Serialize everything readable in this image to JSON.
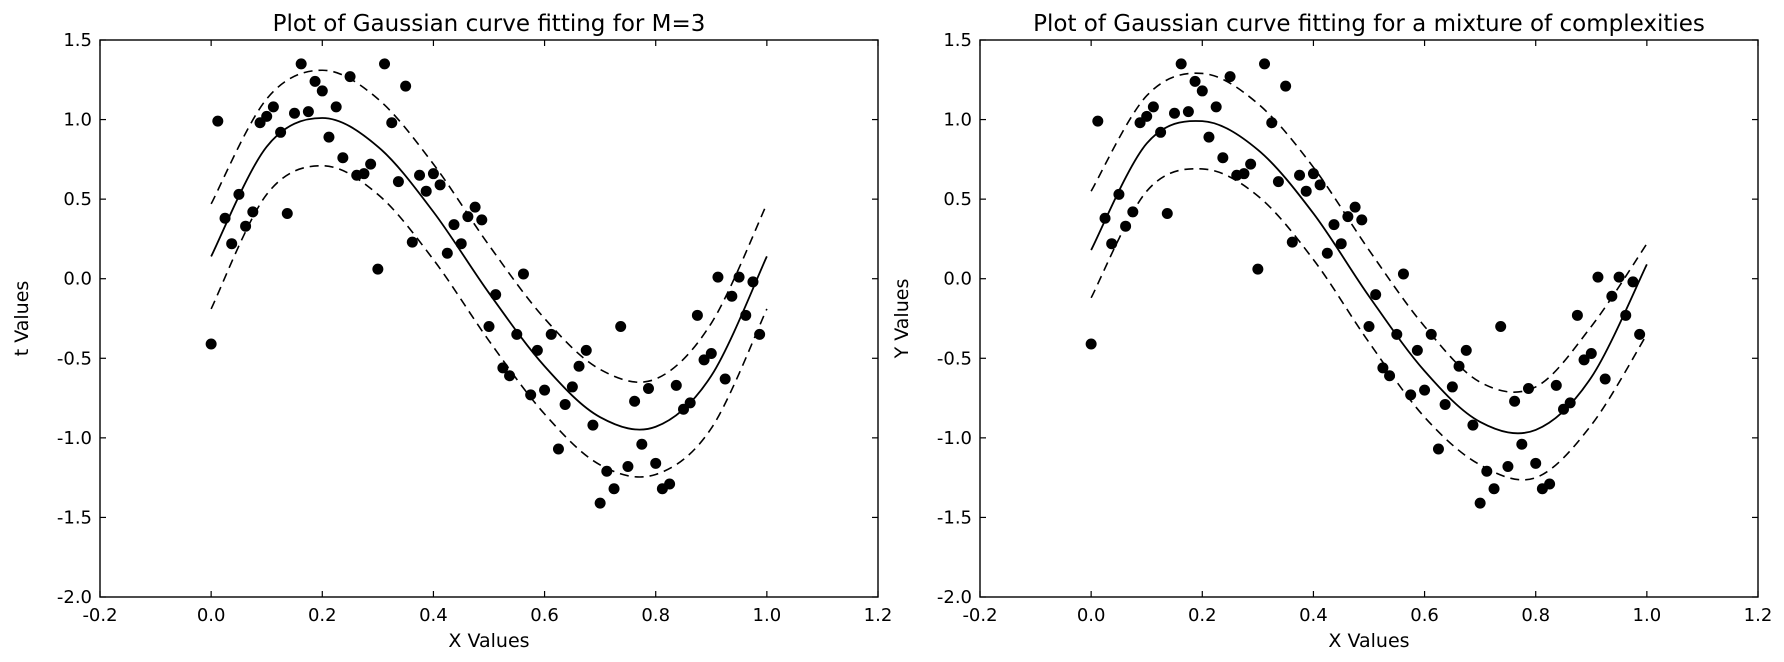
{
  "chart_data": [
    {
      "type": "scatter",
      "title": "Plot of Gaussian curve fitting for M=3",
      "xlabel": "X Values",
      "ylabel": "t Values",
      "xlim": [
        -0.2,
        1.2
      ],
      "ylim": [
        -2.0,
        1.5
      ],
      "xticks": [
        "-0.2",
        "0.0",
        "0.2",
        "0.4",
        "0.6",
        "0.8",
        "1.0",
        "1.2"
      ],
      "yticks": [
        "-2.0",
        "-1.5",
        "-1.0",
        "-0.5",
        "0.0",
        "0.5",
        "1.0",
        "1.5"
      ],
      "grid": false,
      "points": [
        [
          0.0,
          -0.41
        ],
        [
          0.012,
          0.99
        ],
        [
          0.025,
          0.38
        ],
        [
          0.037,
          0.22
        ],
        [
          0.05,
          0.53
        ],
        [
          0.062,
          0.33
        ],
        [
          0.075,
          0.42
        ],
        [
          0.088,
          0.98
        ],
        [
          0.1,
          1.02
        ],
        [
          0.112,
          1.08
        ],
        [
          0.125,
          0.92
        ],
        [
          0.137,
          0.41
        ],
        [
          0.15,
          1.04
        ],
        [
          0.162,
          1.35
        ],
        [
          0.175,
          1.05
        ],
        [
          0.187,
          1.24
        ],
        [
          0.2,
          1.18
        ],
        [
          0.212,
          0.89
        ],
        [
          0.225,
          1.08
        ],
        [
          0.237,
          0.76
        ],
        [
          0.25,
          1.27
        ],
        [
          0.262,
          0.65
        ],
        [
          0.275,
          0.66
        ],
        [
          0.287,
          0.72
        ],
        [
          0.3,
          0.06
        ],
        [
          0.312,
          1.35
        ],
        [
          0.325,
          0.98
        ],
        [
          0.337,
          0.61
        ],
        [
          0.35,
          1.21
        ],
        [
          0.362,
          0.23
        ],
        [
          0.375,
          0.65
        ],
        [
          0.387,
          0.55
        ],
        [
          0.4,
          0.66
        ],
        [
          0.412,
          0.59
        ],
        [
          0.425,
          0.16
        ],
        [
          0.437,
          0.34
        ],
        [
          0.45,
          0.22
        ],
        [
          0.462,
          0.39
        ],
        [
          0.475,
          0.45
        ],
        [
          0.487,
          0.37
        ],
        [
          0.5,
          -0.3
        ],
        [
          0.512,
          -0.1
        ],
        [
          0.525,
          -0.56
        ],
        [
          0.537,
          -0.61
        ],
        [
          0.55,
          -0.35
        ],
        [
          0.562,
          0.03
        ],
        [
          0.575,
          -0.73
        ],
        [
          0.587,
          -0.45
        ],
        [
          0.6,
          -0.7
        ],
        [
          0.612,
          -0.35
        ],
        [
          0.625,
          -1.07
        ],
        [
          0.637,
          -0.79
        ],
        [
          0.65,
          -0.68
        ],
        [
          0.662,
          -0.55
        ],
        [
          0.675,
          -0.45
        ],
        [
          0.687,
          -0.92
        ],
        [
          0.7,
          -1.41
        ],
        [
          0.712,
          -1.21
        ],
        [
          0.725,
          -1.32
        ],
        [
          0.737,
          -0.3
        ],
        [
          0.75,
          -1.18
        ],
        [
          0.762,
          -0.77
        ],
        [
          0.775,
          -1.04
        ],
        [
          0.787,
          -0.69
        ],
        [
          0.8,
          -1.16
        ],
        [
          0.812,
          -1.32
        ],
        [
          0.825,
          -1.29
        ],
        [
          0.837,
          -0.67
        ],
        [
          0.85,
          -0.82
        ],
        [
          0.862,
          -0.78
        ],
        [
          0.875,
          -0.23
        ],
        [
          0.887,
          -0.51
        ],
        [
          0.9,
          -0.47
        ],
        [
          0.912,
          0.01
        ],
        [
          0.925,
          -0.63
        ],
        [
          0.937,
          -0.11
        ],
        [
          0.95,
          0.01
        ],
        [
          0.962,
          -0.23
        ],
        [
          0.975,
          -0.02
        ],
        [
          0.987,
          -0.35
        ]
      ],
      "fit_curve": {
        "x": [
          0.0,
          0.1,
          0.2,
          0.3,
          0.4,
          0.5,
          0.6,
          0.7,
          0.8,
          0.9,
          1.0
        ],
        "y": [
          0.14,
          0.83,
          1.01,
          0.83,
          0.42,
          -0.09,
          -0.55,
          -0.87,
          -0.93,
          -0.61,
          0.14
        ]
      },
      "band_upper": {
        "x": [
          0.0,
          0.1,
          0.2,
          0.3,
          0.4,
          0.5,
          0.6,
          0.7,
          0.8,
          0.9,
          1.0
        ],
        "y": [
          0.47,
          1.13,
          1.31,
          1.13,
          0.72,
          0.21,
          -0.25,
          -0.57,
          -0.63,
          -0.28,
          0.47
        ]
      },
      "band_lower": {
        "x": [
          0.0,
          0.1,
          0.2,
          0.3,
          0.4,
          0.5,
          0.6,
          0.7,
          0.8,
          0.9,
          1.0
        ],
        "y": [
          -0.19,
          0.53,
          0.71,
          0.53,
          0.12,
          -0.39,
          -0.85,
          -1.17,
          -1.23,
          -0.94,
          -0.19
        ]
      }
    },
    {
      "type": "scatter",
      "title": "Plot of Gaussian curve fitting for a mixture of complexities",
      "xlabel": "X Values",
      "ylabel": "Y Values",
      "xlim": [
        -0.2,
        1.2
      ],
      "ylim": [
        -2.0,
        1.5
      ],
      "xticks": [
        "-0.2",
        "0.0",
        "0.2",
        "0.4",
        "0.6",
        "0.8",
        "1.0",
        "1.2"
      ],
      "yticks": [
        "-2.0",
        "-1.5",
        "-1.0",
        "-0.5",
        "0.0",
        "0.5",
        "1.0",
        "1.5"
      ],
      "grid": false,
      "points": [
        [
          0.0,
          -0.41
        ],
        [
          0.012,
          0.99
        ],
        [
          0.025,
          0.38
        ],
        [
          0.037,
          0.22
        ],
        [
          0.05,
          0.53
        ],
        [
          0.062,
          0.33
        ],
        [
          0.075,
          0.42
        ],
        [
          0.088,
          0.98
        ],
        [
          0.1,
          1.02
        ],
        [
          0.112,
          1.08
        ],
        [
          0.125,
          0.92
        ],
        [
          0.137,
          0.41
        ],
        [
          0.15,
          1.04
        ],
        [
          0.162,
          1.35
        ],
        [
          0.175,
          1.05
        ],
        [
          0.187,
          1.24
        ],
        [
          0.2,
          1.18
        ],
        [
          0.212,
          0.89
        ],
        [
          0.225,
          1.08
        ],
        [
          0.237,
          0.76
        ],
        [
          0.25,
          1.27
        ],
        [
          0.262,
          0.65
        ],
        [
          0.275,
          0.66
        ],
        [
          0.287,
          0.72
        ],
        [
          0.3,
          0.06
        ],
        [
          0.312,
          1.35
        ],
        [
          0.325,
          0.98
        ],
        [
          0.337,
          0.61
        ],
        [
          0.35,
          1.21
        ],
        [
          0.362,
          0.23
        ],
        [
          0.375,
          0.65
        ],
        [
          0.387,
          0.55
        ],
        [
          0.4,
          0.66
        ],
        [
          0.412,
          0.59
        ],
        [
          0.425,
          0.16
        ],
        [
          0.437,
          0.34
        ],
        [
          0.45,
          0.22
        ],
        [
          0.462,
          0.39
        ],
        [
          0.475,
          0.45
        ],
        [
          0.487,
          0.37
        ],
        [
          0.5,
          -0.3
        ],
        [
          0.512,
          -0.1
        ],
        [
          0.525,
          -0.56
        ],
        [
          0.537,
          -0.61
        ],
        [
          0.55,
          -0.35
        ],
        [
          0.562,
          0.03
        ],
        [
          0.575,
          -0.73
        ],
        [
          0.587,
          -0.45
        ],
        [
          0.6,
          -0.7
        ],
        [
          0.612,
          -0.35
        ],
        [
          0.625,
          -1.07
        ],
        [
          0.637,
          -0.79
        ],
        [
          0.65,
          -0.68
        ],
        [
          0.662,
          -0.55
        ],
        [
          0.675,
          -0.45
        ],
        [
          0.687,
          -0.92
        ],
        [
          0.7,
          -1.41
        ],
        [
          0.712,
          -1.21
        ],
        [
          0.725,
          -1.32
        ],
        [
          0.737,
          -0.3
        ],
        [
          0.75,
          -1.18
        ],
        [
          0.762,
          -0.77
        ],
        [
          0.775,
          -1.04
        ],
        [
          0.787,
          -0.69
        ],
        [
          0.8,
          -1.16
        ],
        [
          0.812,
          -1.32
        ],
        [
          0.825,
          -1.29
        ],
        [
          0.837,
          -0.67
        ],
        [
          0.85,
          -0.82
        ],
        [
          0.862,
          -0.78
        ],
        [
          0.875,
          -0.23
        ],
        [
          0.887,
          -0.51
        ],
        [
          0.9,
          -0.47
        ],
        [
          0.912,
          0.01
        ],
        [
          0.925,
          -0.63
        ],
        [
          0.937,
          -0.11
        ],
        [
          0.95,
          0.01
        ],
        [
          0.962,
          -0.23
        ],
        [
          0.975,
          -0.02
        ],
        [
          0.987,
          -0.35
        ]
      ],
      "fit_curve": {
        "x": [
          0.0,
          0.1,
          0.2,
          0.3,
          0.4,
          0.5,
          0.6,
          0.7,
          0.8,
          0.9,
          1.0
        ],
        "y": [
          0.18,
          0.85,
          0.99,
          0.81,
          0.41,
          -0.11,
          -0.58,
          -0.9,
          -0.95,
          -0.62,
          0.09
        ]
      },
      "band_upper": {
        "x": [
          0.0,
          0.1,
          0.2,
          0.3,
          0.4,
          0.5,
          0.6,
          0.7,
          0.8,
          0.9,
          1.0
        ],
        "y": [
          0.55,
          1.15,
          1.29,
          1.1,
          0.7,
          0.18,
          -0.3,
          -0.65,
          -0.68,
          -0.3,
          0.22
        ]
      },
      "band_lower": {
        "x": [
          0.0,
          0.1,
          0.2,
          0.3,
          0.4,
          0.5,
          0.6,
          0.7,
          0.8,
          0.9,
          1.0
        ],
        "y": [
          -0.12,
          0.55,
          0.69,
          0.52,
          0.12,
          -0.4,
          -0.87,
          -1.17,
          -1.25,
          -0.92,
          -0.35
        ]
      }
    }
  ]
}
